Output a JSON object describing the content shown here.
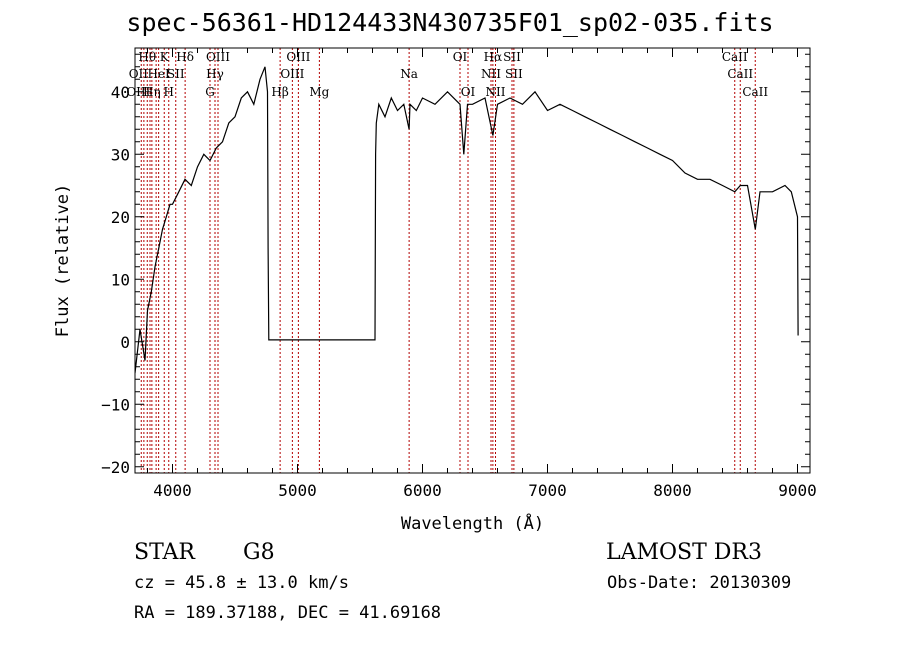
{
  "chart_data": {
    "type": "line",
    "title": "spec-56361-HD124433N430735F01_sp02-035.fits",
    "xlabel": "Wavelength (Å)",
    "ylabel": "Flux (relative)",
    "xlim": [
      3700,
      9100
    ],
    "ylim": [
      -21,
      47
    ],
    "xticks": [
      4000,
      5000,
      6000,
      7000,
      8000,
      9000
    ],
    "yticks": [
      -20,
      -10,
      0,
      10,
      20,
      30,
      40
    ],
    "grid": false,
    "series": [
      {
        "color": "#000000",
        "x": [
          3700,
          3740,
          3780,
          3800,
          3830,
          3860,
          3890,
          3920,
          3950,
          3980,
          4000,
          4050,
          4100,
          4150,
          4200,
          4250,
          4300,
          4350,
          4400,
          4450,
          4500,
          4550,
          4600,
          4650,
          4700,
          4740,
          4760,
          4765,
          4770,
          5620,
          5625,
          5630,
          5650,
          5700,
          5750,
          5800,
          5850,
          5893,
          5900,
          5950,
          6000,
          6100,
          6200,
          6300,
          6330,
          6360,
          6400,
          6500,
          6563,
          6600,
          6700,
          6800,
          6900,
          7000,
          7100,
          7200,
          7300,
          7400,
          7500,
          7600,
          7700,
          7800,
          7900,
          8000,
          8100,
          8200,
          8300,
          8400,
          8498,
          8542,
          8600,
          8662,
          8700,
          8800,
          8900,
          8950,
          9000,
          9005
        ],
        "y": [
          -5,
          2,
          -3,
          5,
          8,
          12,
          15,
          18,
          20,
          22,
          22,
          24,
          26,
          25,
          28,
          30,
          29,
          31,
          32,
          35,
          36,
          39,
          40,
          38,
          42,
          44,
          40,
          15,
          0.3,
          0.3,
          30,
          35,
          38,
          36,
          39,
          37,
          38,
          34,
          38,
          37,
          39,
          38,
          40,
          38,
          30,
          38,
          38,
          39,
          33,
          38,
          39,
          38,
          40,
          37,
          38,
          37,
          36,
          35,
          34,
          33,
          32,
          31,
          30,
          29,
          27,
          26,
          26,
          25,
          24,
          25,
          25,
          18,
          24,
          24,
          25,
          24,
          20,
          1
        ]
      }
    ],
    "lines": {
      "positions": [
        3750,
        3771,
        3798,
        3820,
        3835,
        3869,
        3889,
        3934,
        3970,
        4026,
        4101,
        4300,
        4340,
        4364,
        4861,
        4959,
        5007,
        5175,
        5893,
        6300,
        6364,
        6548,
        6563,
        6584,
        6716,
        6731,
        8498,
        8542,
        8662
      ],
      "labels": [
        {
          "text": "Hθ",
          "w": 3798,
          "row": 0
        },
        {
          "text": "K",
          "w": 3934,
          "row": 0
        },
        {
          "text": "Hδ",
          "w": 4101,
          "row": 0
        },
        {
          "text": "OIII",
          "w": 4364,
          "row": 0
        },
        {
          "text": "OIII",
          "w": 5007,
          "row": 0
        },
        {
          "text": "OI",
          "w": 6300,
          "row": 0
        },
        {
          "text": "Hα",
          "w": 6563,
          "row": 0
        },
        {
          "text": "SII",
          "w": 6716,
          "row": 0
        },
        {
          "text": "CaII",
          "w": 8498,
          "row": 0
        },
        {
          "text": "OII",
          "w": 3727,
          "row": 1
        },
        {
          "text": "HeI",
          "w": 3889,
          "row": 1
        },
        {
          "text": "SII",
          "w": 4026,
          "row": 1
        },
        {
          "text": "Hγ",
          "w": 4340,
          "row": 1
        },
        {
          "text": "OIII",
          "w": 4959,
          "row": 1
        },
        {
          "text": "Na",
          "w": 5893,
          "row": 1
        },
        {
          "text": "NII",
          "w": 6548,
          "row": 1
        },
        {
          "text": "SII",
          "w": 6731,
          "row": 1
        },
        {
          "text": "CaII",
          "w": 8542,
          "row": 1
        },
        {
          "text": "OIII",
          "w": 3727,
          "row": 2
        },
        {
          "text": "Hη",
          "w": 3835,
          "row": 2
        },
        {
          "text": "H",
          "w": 3970,
          "row": 2
        },
        {
          "text": "G",
          "w": 4300,
          "row": 2
        },
        {
          "text": "Hβ",
          "w": 4861,
          "row": 2
        },
        {
          "text": "Mg",
          "w": 5175,
          "row": 2
        },
        {
          "text": "OI",
          "w": 6364,
          "row": 2
        },
        {
          "text": "NII",
          "w": 6584,
          "row": 2
        },
        {
          "text": "CaII",
          "w": 8662,
          "row": 2
        }
      ]
    }
  },
  "info": {
    "class": "STAR",
    "subclass": "G8",
    "survey": "LAMOST DR3",
    "redshift": "cz = 45.8 ± 13.0 km/s",
    "obs_date": "Obs-Date: 20130309",
    "coords": "RA = 189.37188, DEC =  41.69168"
  }
}
